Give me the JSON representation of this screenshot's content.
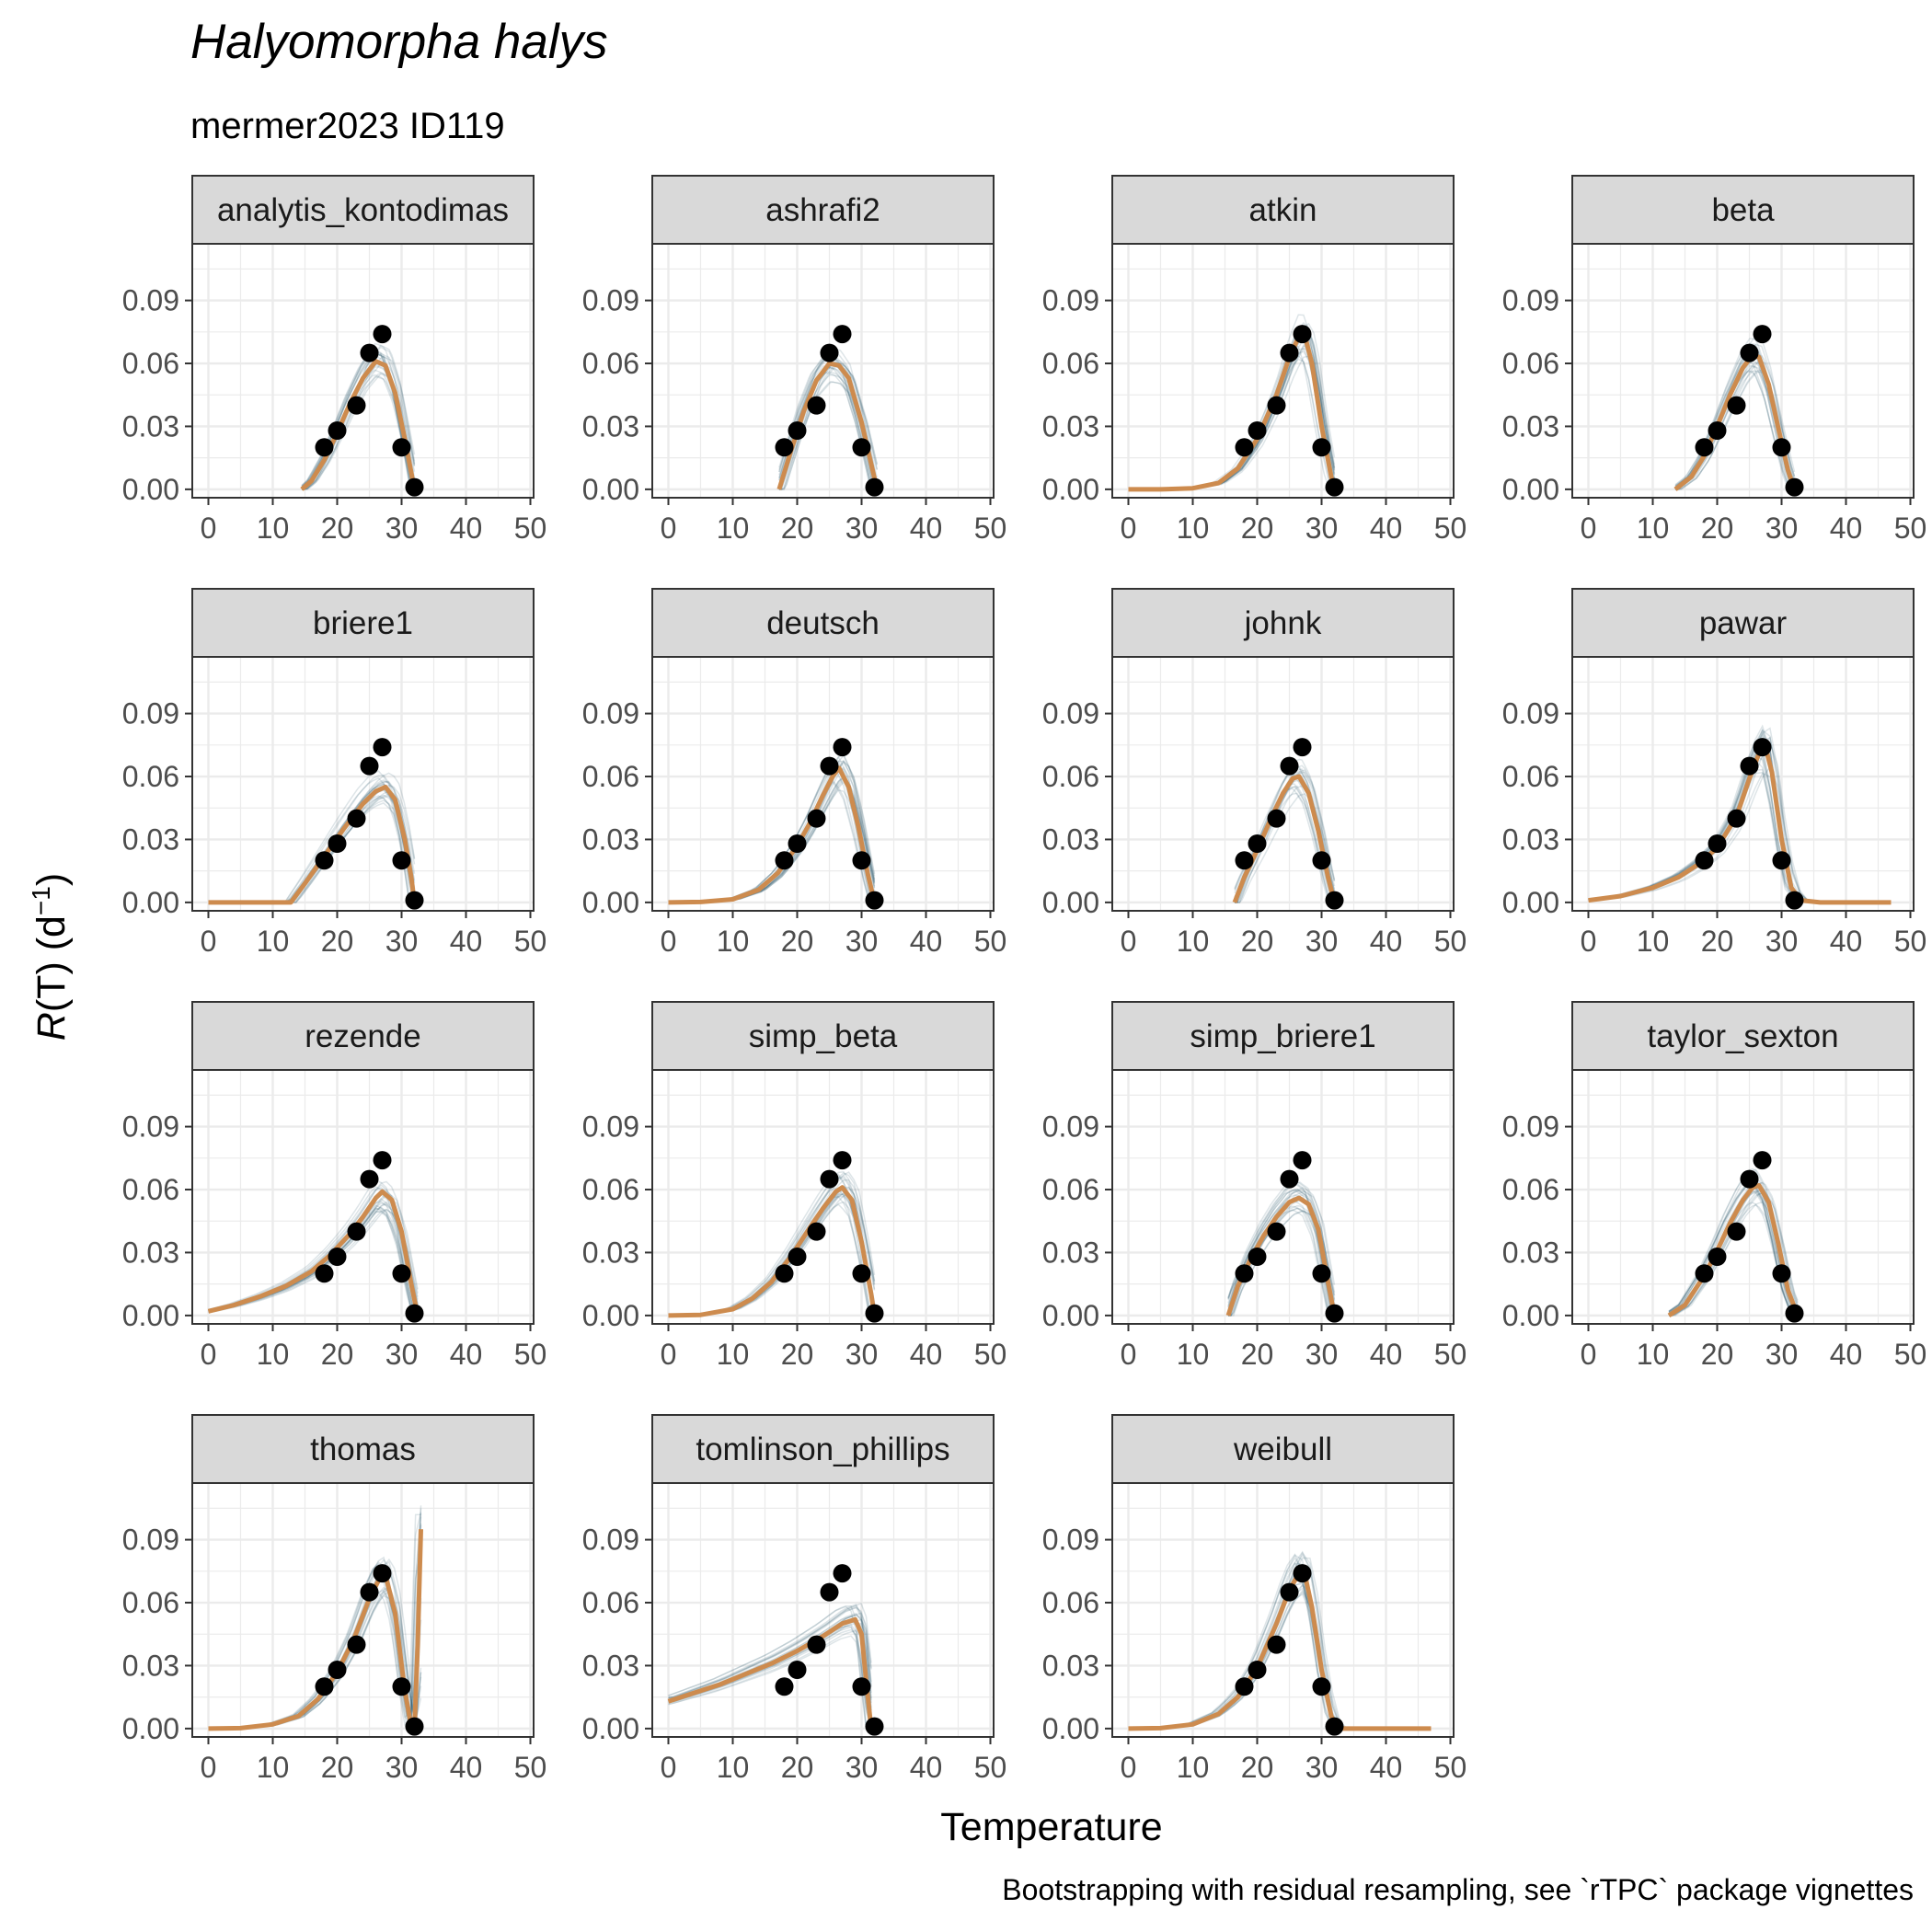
{
  "title": "Halyomorpha halys",
  "subtitle": "mermer2023 ID119",
  "caption": "Bootstrapping with residual resampling, see `rTPC` package vignettes",
  "colors": {
    "fit": "#CD8B4E",
    "bootstrap": "#1F4E66",
    "points": "#000000",
    "strip_fill": "#D9D9D9",
    "grid": "#EBEBEB",
    "panel_border": "#333333"
  },
  "chart_data": {
    "type": "line",
    "xlabel": "Temperature",
    "ylabel_main": "R",
    "ylabel_rest": "(T) (d",
    "ylabel_sup": "−1",
    "ylabel_close": ")",
    "xlim": [
      -2.5,
      50.5
    ],
    "ylim": [
      -0.004,
      0.117
    ],
    "x_ticks": [
      "0",
      "10",
      "20",
      "30",
      "40",
      "50"
    ],
    "y_ticks": [
      "0.00",
      "0.03",
      "0.06",
      "0.09"
    ],
    "observations": {
      "temperature": [
        18,
        20,
        23,
        25,
        27,
        30,
        32
      ],
      "rate": [
        0.02,
        0.028,
        0.04,
        0.065,
        0.074,
        0.02,
        0.001
      ]
    },
    "panels": [
      {
        "name": "analytis_kontodimas",
        "fit": {
          "x": [
            14.5,
            16,
            18,
            20,
            22,
            24,
            26,
            27.5,
            29,
            30.5,
            32
          ],
          "y": [
            0,
            0.004,
            0.014,
            0.027,
            0.041,
            0.053,
            0.061,
            0.059,
            0.046,
            0.024,
            0
          ]
        }
      },
      {
        "name": "ashrafi2",
        "fit": {
          "x": [
            17.2,
            19,
            21,
            23,
            25,
            26.5,
            28,
            30,
            31.5,
            32.4
          ],
          "y": [
            0,
            0.018,
            0.037,
            0.052,
            0.06,
            0.059,
            0.053,
            0.032,
            0.012,
            0
          ]
        }
      },
      {
        "name": "atkin",
        "fit": {
          "x": [
            0,
            5,
            10,
            14,
            17,
            20,
            23,
            25,
            26.5,
            27.5,
            28.5,
            30,
            31.5,
            32
          ],
          "y": [
            0,
            0,
            0.0005,
            0.003,
            0.01,
            0.024,
            0.045,
            0.063,
            0.073,
            0.072,
            0.06,
            0.03,
            0.006,
            0
          ]
        }
      },
      {
        "name": "beta",
        "fit": {
          "x": [
            13.5,
            16,
            18,
            20,
            22,
            24,
            25.5,
            26.5,
            28,
            29.5,
            31,
            32
          ],
          "y": [
            0,
            0.006,
            0.016,
            0.03,
            0.045,
            0.058,
            0.064,
            0.063,
            0.05,
            0.029,
            0.009,
            0
          ]
        }
      },
      {
        "name": "briere1",
        "fit": {
          "x": [
            0,
            12.8,
            15,
            18,
            21,
            24,
            26,
            27.5,
            29,
            30.5,
            31.5,
            32
          ],
          "y": [
            0,
            0,
            0.009,
            0.022,
            0.035,
            0.047,
            0.053,
            0.055,
            0.049,
            0.03,
            0.012,
            0
          ]
        }
      },
      {
        "name": "deutsch",
        "fit": {
          "x": [
            0,
            5,
            10,
            14,
            17,
            20,
            22,
            24,
            25.5,
            26.5,
            28,
            29.5,
            31,
            32
          ],
          "y": [
            0,
            0.0002,
            0.0015,
            0.006,
            0.014,
            0.027,
            0.038,
            0.051,
            0.06,
            0.064,
            0.055,
            0.036,
            0.013,
            0
          ]
        }
      },
      {
        "name": "johnk",
        "fit": {
          "x": [
            16.5,
            18,
            20,
            22,
            24,
            25.5,
            26.5,
            28,
            29.5,
            31,
            32
          ],
          "y": [
            0,
            0.012,
            0.025,
            0.039,
            0.052,
            0.059,
            0.06,
            0.052,
            0.034,
            0.012,
            0
          ]
        }
      },
      {
        "name": "pawar",
        "fit": {
          "x": [
            0,
            5,
            10,
            14,
            17,
            20,
            23,
            25,
            26.5,
            27.5,
            28.5,
            30,
            31.5,
            33,
            36,
            40,
            47
          ],
          "y": [
            0.001,
            0.003,
            0.007,
            0.012,
            0.018,
            0.026,
            0.041,
            0.059,
            0.071,
            0.074,
            0.062,
            0.03,
            0.007,
            0.001,
            0,
            0,
            0
          ]
        }
      },
      {
        "name": "rezende",
        "fit": {
          "x": [
            0,
            4,
            8,
            12,
            16,
            19,
            22,
            24,
            26,
            27,
            28.5,
            30,
            31.5,
            32.5
          ],
          "y": [
            0.002,
            0.005,
            0.009,
            0.014,
            0.021,
            0.029,
            0.039,
            0.047,
            0.056,
            0.059,
            0.055,
            0.04,
            0.015,
            0
          ]
        }
      },
      {
        "name": "simp_beta",
        "fit": {
          "x": [
            0,
            5,
            10,
            13,
            16,
            19,
            22,
            24,
            26,
            27,
            28.5,
            30,
            31.5,
            32
          ],
          "y": [
            0,
            0.0003,
            0.003,
            0.008,
            0.016,
            0.028,
            0.042,
            0.051,
            0.059,
            0.061,
            0.055,
            0.035,
            0.01,
            0
          ]
        }
      },
      {
        "name": "simp_briere1",
        "fit": {
          "x": [
            15.5,
            17,
            19,
            21,
            23,
            25,
            26.5,
            28,
            29.5,
            31,
            32
          ],
          "y": [
            0,
            0.014,
            0.027,
            0.038,
            0.047,
            0.054,
            0.056,
            0.053,
            0.041,
            0.016,
            0
          ]
        }
      },
      {
        "name": "taylor_sexton",
        "fit": {
          "x": [
            12.5,
            15,
            18,
            20,
            22,
            24,
            25.5,
            26.5,
            28,
            29.5,
            31,
            32.5
          ],
          "y": [
            0,
            0.005,
            0.019,
            0.031,
            0.044,
            0.055,
            0.061,
            0.062,
            0.054,
            0.034,
            0.012,
            0
          ]
        }
      },
      {
        "name": "thomas",
        "fit": {
          "x": [
            0,
            5,
            10,
            14,
            17,
            20,
            22.5,
            25,
            26.5,
            27.5,
            29,
            30.5,
            31.5,
            32,
            32.5,
            33
          ],
          "y": [
            0,
            0.0002,
            0.002,
            0.006,
            0.014,
            0.027,
            0.042,
            0.062,
            0.071,
            0.073,
            0.055,
            0.018,
            0.001,
            0,
            0.04,
            0.095
          ]
        }
      },
      {
        "name": "tomlinson_phillips",
        "fit": {
          "x": [
            0,
            4,
            8,
            12,
            16,
            20,
            24,
            27,
            29,
            30,
            30.8,
            31.5
          ],
          "y": [
            0.013,
            0.017,
            0.021,
            0.026,
            0.031,
            0.037,
            0.044,
            0.05,
            0.052,
            0.045,
            0.02,
            0
          ]
        }
      },
      {
        "name": "weibull",
        "fit": {
          "x": [
            0,
            5,
            10,
            14,
            17,
            20,
            23,
            25,
            26.5,
            27.5,
            28.5,
            30,
            31.5,
            32.5,
            36,
            40,
            47
          ],
          "y": [
            0,
            0.0002,
            0.002,
            0.007,
            0.015,
            0.029,
            0.05,
            0.066,
            0.074,
            0.072,
            0.058,
            0.028,
            0.006,
            0,
            0,
            0,
            0
          ]
        }
      }
    ]
  }
}
